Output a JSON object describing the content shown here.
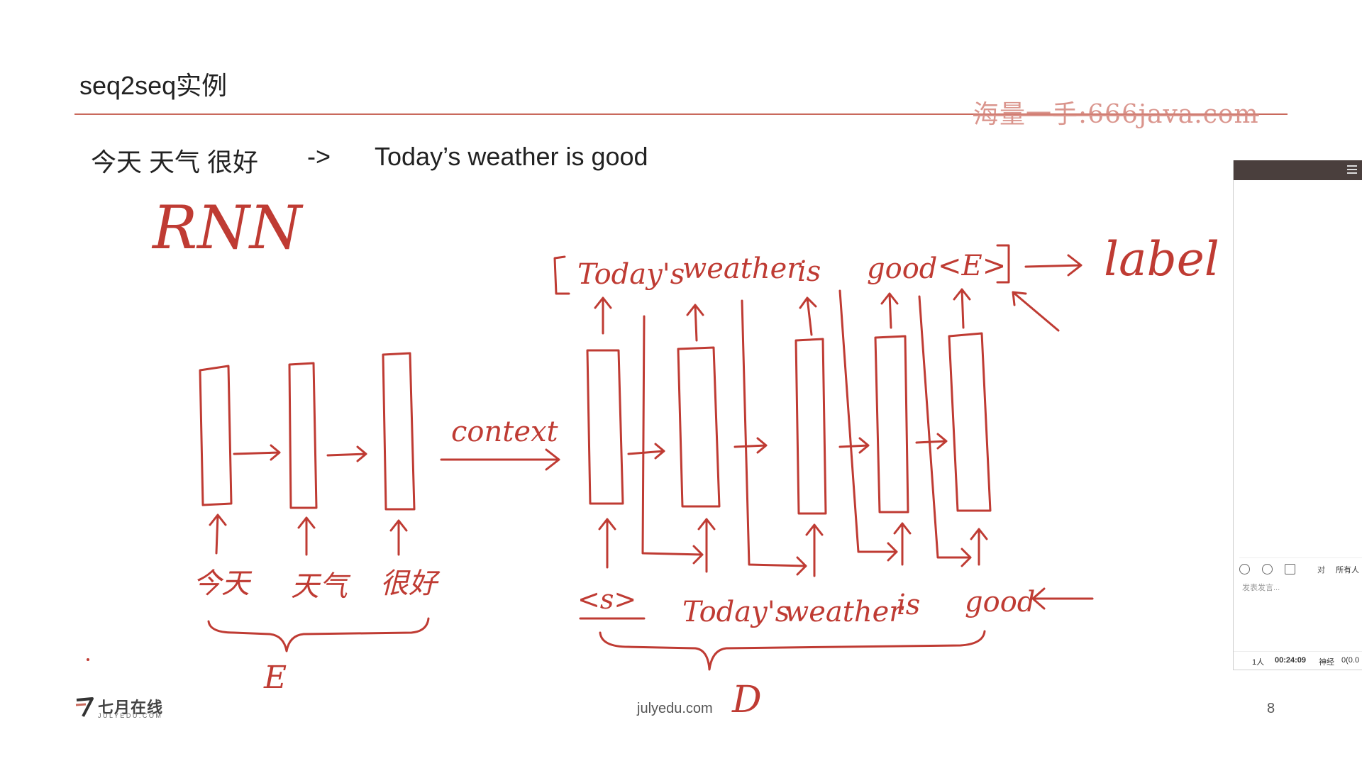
{
  "slide": {
    "title": "seq2seq实例",
    "watermark": "海量一手:666java.com"
  },
  "example": {
    "source": "今天 天气 很好",
    "arrow": "->",
    "target": "Today’s weather is good"
  },
  "diagram": {
    "model_label": "RNN",
    "context_label": "context",
    "encoder_inputs": [
      "今天",
      "天气",
      "很好"
    ],
    "decoder_inputs": [
      "<s>",
      "Today's",
      "weather",
      "is",
      "good"
    ],
    "decoder_outputs": [
      "Today's",
      "weather",
      "is",
      "good",
      "<E>"
    ],
    "label_text": "label",
    "encoder_brace_label": "E",
    "decoder_brace_label": "D"
  },
  "footer": {
    "logo_name": "七月在线",
    "logo_sub": "JULYEDU.COM",
    "site": "julyedu.com",
    "page_number": "8"
  },
  "chat_panel": {
    "to_label": "对",
    "recipient": "所有人",
    "input_placeholder": "发表发言...",
    "users": "1人",
    "time": "00:24:09",
    "status_label": "神经",
    "status_value": "0(0.0"
  },
  "colors": {
    "ink": "#bf3b33",
    "rule": "#c9695c",
    "panel_header": "#4a3f3d"
  }
}
